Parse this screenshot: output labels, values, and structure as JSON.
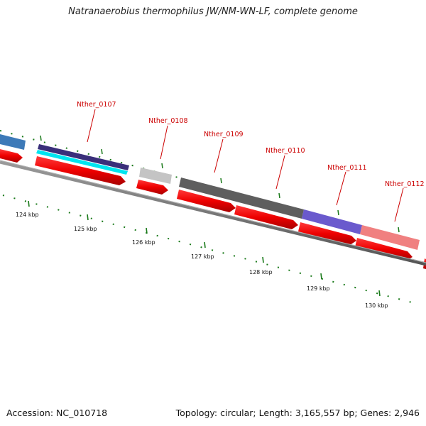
{
  "title": "Natranaerobius thermophilus JW/NM-WN-LF, complete genome",
  "footer": {
    "accession": "Accession: NC_010718",
    "summary": "Topology: circular; Length: 3,165,557 bp; Genes: 2,946"
  },
  "scale_labels": [
    "124 kbp",
    "125 kbp",
    "126 kbp",
    "127 kbp",
    "128 kbp",
    "129 kbp",
    "130 kbp"
  ],
  "gene_labels": [
    "Nther_0107",
    "Nther_0108",
    "Nther_0109",
    "Nther_0110",
    "Nther_0111",
    "Nther_0112"
  ],
  "colors": {
    "backbone": "#7a7a7a",
    "cds_arrow": "#ee0000",
    "gene_label": "#cc0000",
    "tick": "#1a7a1a",
    "cog_blue": "#3d7ab8",
    "cog_navy": "#3a2f7a",
    "cog_cyan": "#00e5f0",
    "cog_light_gray": "#c4c4c4",
    "cog_dark_gray": "#5e5e5e",
    "cog_slate_blue": "#6a5acd",
    "cog_pink": "#f08080"
  }
}
